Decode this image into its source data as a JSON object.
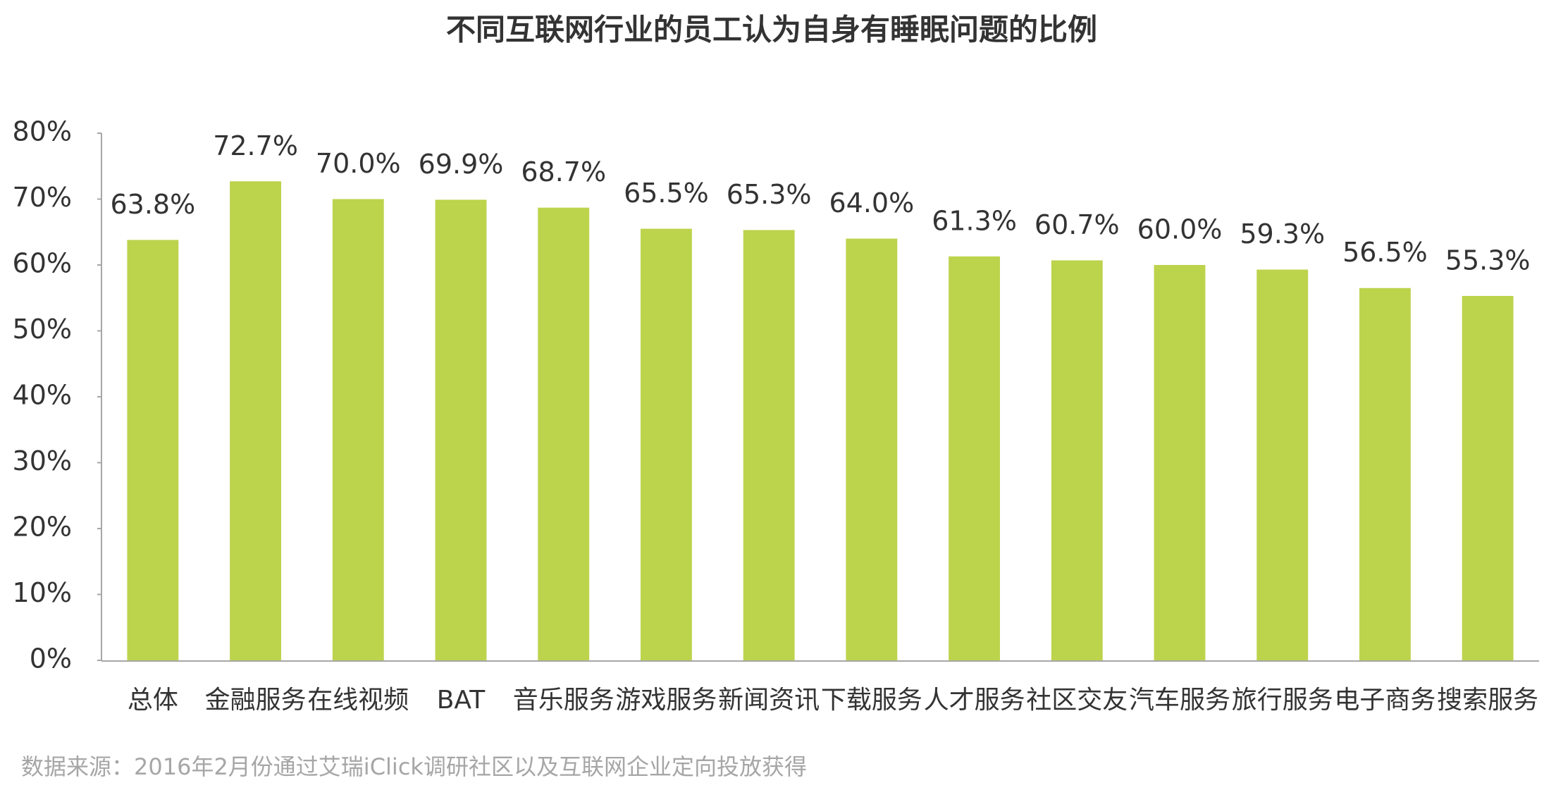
{
  "chart_data": {
    "type": "bar",
    "title": "不同互联网行业的员工认为自身有睡眠问题的比例",
    "categories": [
      "总体",
      "金融服务",
      "在线视频",
      "BAT",
      "音乐服务",
      "游戏服务",
      "新闻资讯",
      "下载服务",
      "人才服务",
      "社区交友",
      "汽车服务",
      "旅行服务",
      "电子商务",
      "搜索服务"
    ],
    "values": [
      63.8,
      72.7,
      70.0,
      69.9,
      68.7,
      65.5,
      65.3,
      64.0,
      61.3,
      60.7,
      60.0,
      59.3,
      56.5,
      55.3
    ],
    "value_labels": [
      "63.8%",
      "72.7%",
      "70.0%",
      "69.9%",
      "68.7%",
      "65.5%",
      "65.3%",
      "64.0%",
      "61.3%",
      "60.7%",
      "60.0%",
      "59.3%",
      "56.5%",
      "55.3%"
    ],
    "color": "#bcd34c",
    "ylim": [
      0,
      80
    ],
    "yticks": [
      {
        "value": 0,
        "label": "0%"
      },
      {
        "value": 10,
        "label": "10%"
      },
      {
        "value": 20,
        "label": "20%"
      },
      {
        "value": 30,
        "label": "30%"
      },
      {
        "value": 40,
        "label": "40%"
      },
      {
        "value": 50,
        "label": "50%"
      },
      {
        "value": 60,
        "label": "60%"
      },
      {
        "value": 70,
        "label": "70%"
      },
      {
        "value": 80,
        "label": "80%"
      }
    ],
    "grid": false,
    "source": "数据来源：2016年2月份通过艾瑞iClick调研社区以及互联网企业定向投放获得"
  }
}
